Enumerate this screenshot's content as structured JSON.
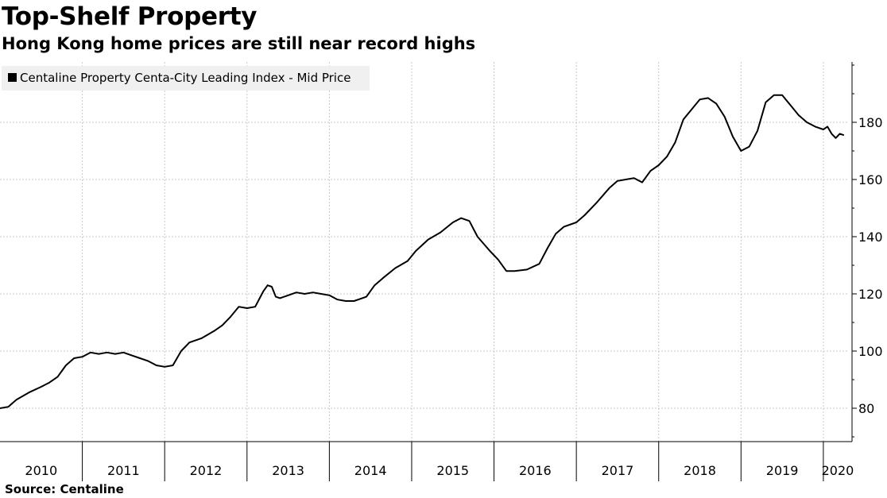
{
  "header": {
    "title": "Top-Shelf Property",
    "subtitle": "Hong Kong home prices are still near record highs"
  },
  "footer": {
    "source": "Source: Centaline"
  },
  "chart_data": {
    "type": "line",
    "title": "Top-Shelf Property",
    "subtitle": "Hong Kong home prices are still near record highs",
    "legend": "top-left",
    "grid": true,
    "xlim": [
      2010.0,
      2020.3
    ],
    "ylim": [
      68,
      202
    ],
    "y_ticks": [
      80,
      100,
      120,
      140,
      160,
      180
    ],
    "y_tick_labels": [
      "80",
      "100",
      "120",
      "140",
      "160",
      "180"
    ],
    "x_ticks": [
      2010,
      2011,
      2012,
      2013,
      2014,
      2015,
      2016,
      2017,
      2018,
      2019,
      2020
    ],
    "x_tick_labels": [
      "2010",
      "2011",
      "2012",
      "2013",
      "2014",
      "2015",
      "2016",
      "2017",
      "2018",
      "2019",
      "2020"
    ],
    "series": [
      {
        "name": "Centaline Property Centa-City Leading Index - Mid Price",
        "color": "#000000",
        "points": [
          [
            2010.0,
            80.0
          ],
          [
            2010.1,
            80.5
          ],
          [
            2010.2,
            83.0
          ],
          [
            2010.35,
            85.5
          ],
          [
            2010.5,
            87.5
          ],
          [
            2010.6,
            89.0
          ],
          [
            2010.7,
            91.0
          ],
          [
            2010.8,
            95.0
          ],
          [
            2010.9,
            97.5
          ],
          [
            2011.0,
            98.0
          ],
          [
            2011.1,
            99.5
          ],
          [
            2011.2,
            99.0
          ],
          [
            2011.3,
            99.5
          ],
          [
            2011.4,
            99.0
          ],
          [
            2011.5,
            99.5
          ],
          [
            2011.6,
            98.5
          ],
          [
            2011.7,
            97.5
          ],
          [
            2011.8,
            96.5
          ],
          [
            2011.9,
            95.0
          ],
          [
            2012.0,
            94.5
          ],
          [
            2012.1,
            95.0
          ],
          [
            2012.2,
            100.0
          ],
          [
            2012.3,
            103.0
          ],
          [
            2012.45,
            104.5
          ],
          [
            2012.6,
            107.0
          ],
          [
            2012.7,
            109.0
          ],
          [
            2012.8,
            112.0
          ],
          [
            2012.9,
            115.5
          ],
          [
            2013.0,
            115.0
          ],
          [
            2013.1,
            115.5
          ],
          [
            2013.2,
            121.0
          ],
          [
            2013.25,
            123.0
          ],
          [
            2013.3,
            122.5
          ],
          [
            2013.35,
            119.0
          ],
          [
            2013.4,
            118.5
          ],
          [
            2013.5,
            119.5
          ],
          [
            2013.6,
            120.5
          ],
          [
            2013.7,
            120.0
          ],
          [
            2013.8,
            120.5
          ],
          [
            2013.9,
            120.0
          ],
          [
            2014.0,
            119.5
          ],
          [
            2014.1,
            118.0
          ],
          [
            2014.2,
            117.5
          ],
          [
            2014.3,
            117.5
          ],
          [
            2014.4,
            118.5
          ],
          [
            2014.45,
            119.0
          ],
          [
            2014.55,
            123.0
          ],
          [
            2014.65,
            125.5
          ],
          [
            2014.8,
            129.0
          ],
          [
            2014.95,
            131.5
          ],
          [
            2015.05,
            135.0
          ],
          [
            2015.2,
            139.0
          ],
          [
            2015.35,
            141.5
          ],
          [
            2015.5,
            145.0
          ],
          [
            2015.6,
            146.5
          ],
          [
            2015.7,
            145.5
          ],
          [
            2015.8,
            140.0
          ],
          [
            2015.95,
            135.0
          ],
          [
            2016.05,
            132.0
          ],
          [
            2016.15,
            128.0
          ],
          [
            2016.25,
            128.0
          ],
          [
            2016.4,
            128.5
          ],
          [
            2016.55,
            130.5
          ],
          [
            2016.65,
            136.0
          ],
          [
            2016.75,
            141.0
          ],
          [
            2016.85,
            143.5
          ],
          [
            2017.0,
            145.0
          ],
          [
            2017.1,
            147.5
          ],
          [
            2017.25,
            152.0
          ],
          [
            2017.4,
            157.0
          ],
          [
            2017.5,
            159.5
          ],
          [
            2017.6,
            160.0
          ],
          [
            2017.7,
            160.5
          ],
          [
            2017.8,
            159.0
          ],
          [
            2017.9,
            163.0
          ],
          [
            2018.0,
            165.0
          ],
          [
            2018.1,
            168.0
          ],
          [
            2018.2,
            173.0
          ],
          [
            2018.3,
            181.0
          ],
          [
            2018.4,
            184.5
          ],
          [
            2018.5,
            188.0
          ],
          [
            2018.6,
            188.5
          ],
          [
            2018.7,
            186.5
          ],
          [
            2018.8,
            182.0
          ],
          [
            2018.9,
            175.0
          ],
          [
            2019.0,
            170.0
          ],
          [
            2019.1,
            171.5
          ],
          [
            2019.2,
            177.0
          ],
          [
            2019.3,
            187.0
          ],
          [
            2019.4,
            189.5
          ],
          [
            2019.5,
            189.5
          ],
          [
            2019.6,
            186.0
          ],
          [
            2019.7,
            182.5
          ],
          [
            2019.8,
            180.0
          ],
          [
            2019.9,
            178.5
          ],
          [
            2020.0,
            177.5
          ],
          [
            2020.05,
            178.5
          ],
          [
            2020.1,
            176.0
          ],
          [
            2020.15,
            174.5
          ],
          [
            2020.2,
            176.0
          ],
          [
            2020.25,
            175.5
          ]
        ]
      }
    ]
  }
}
